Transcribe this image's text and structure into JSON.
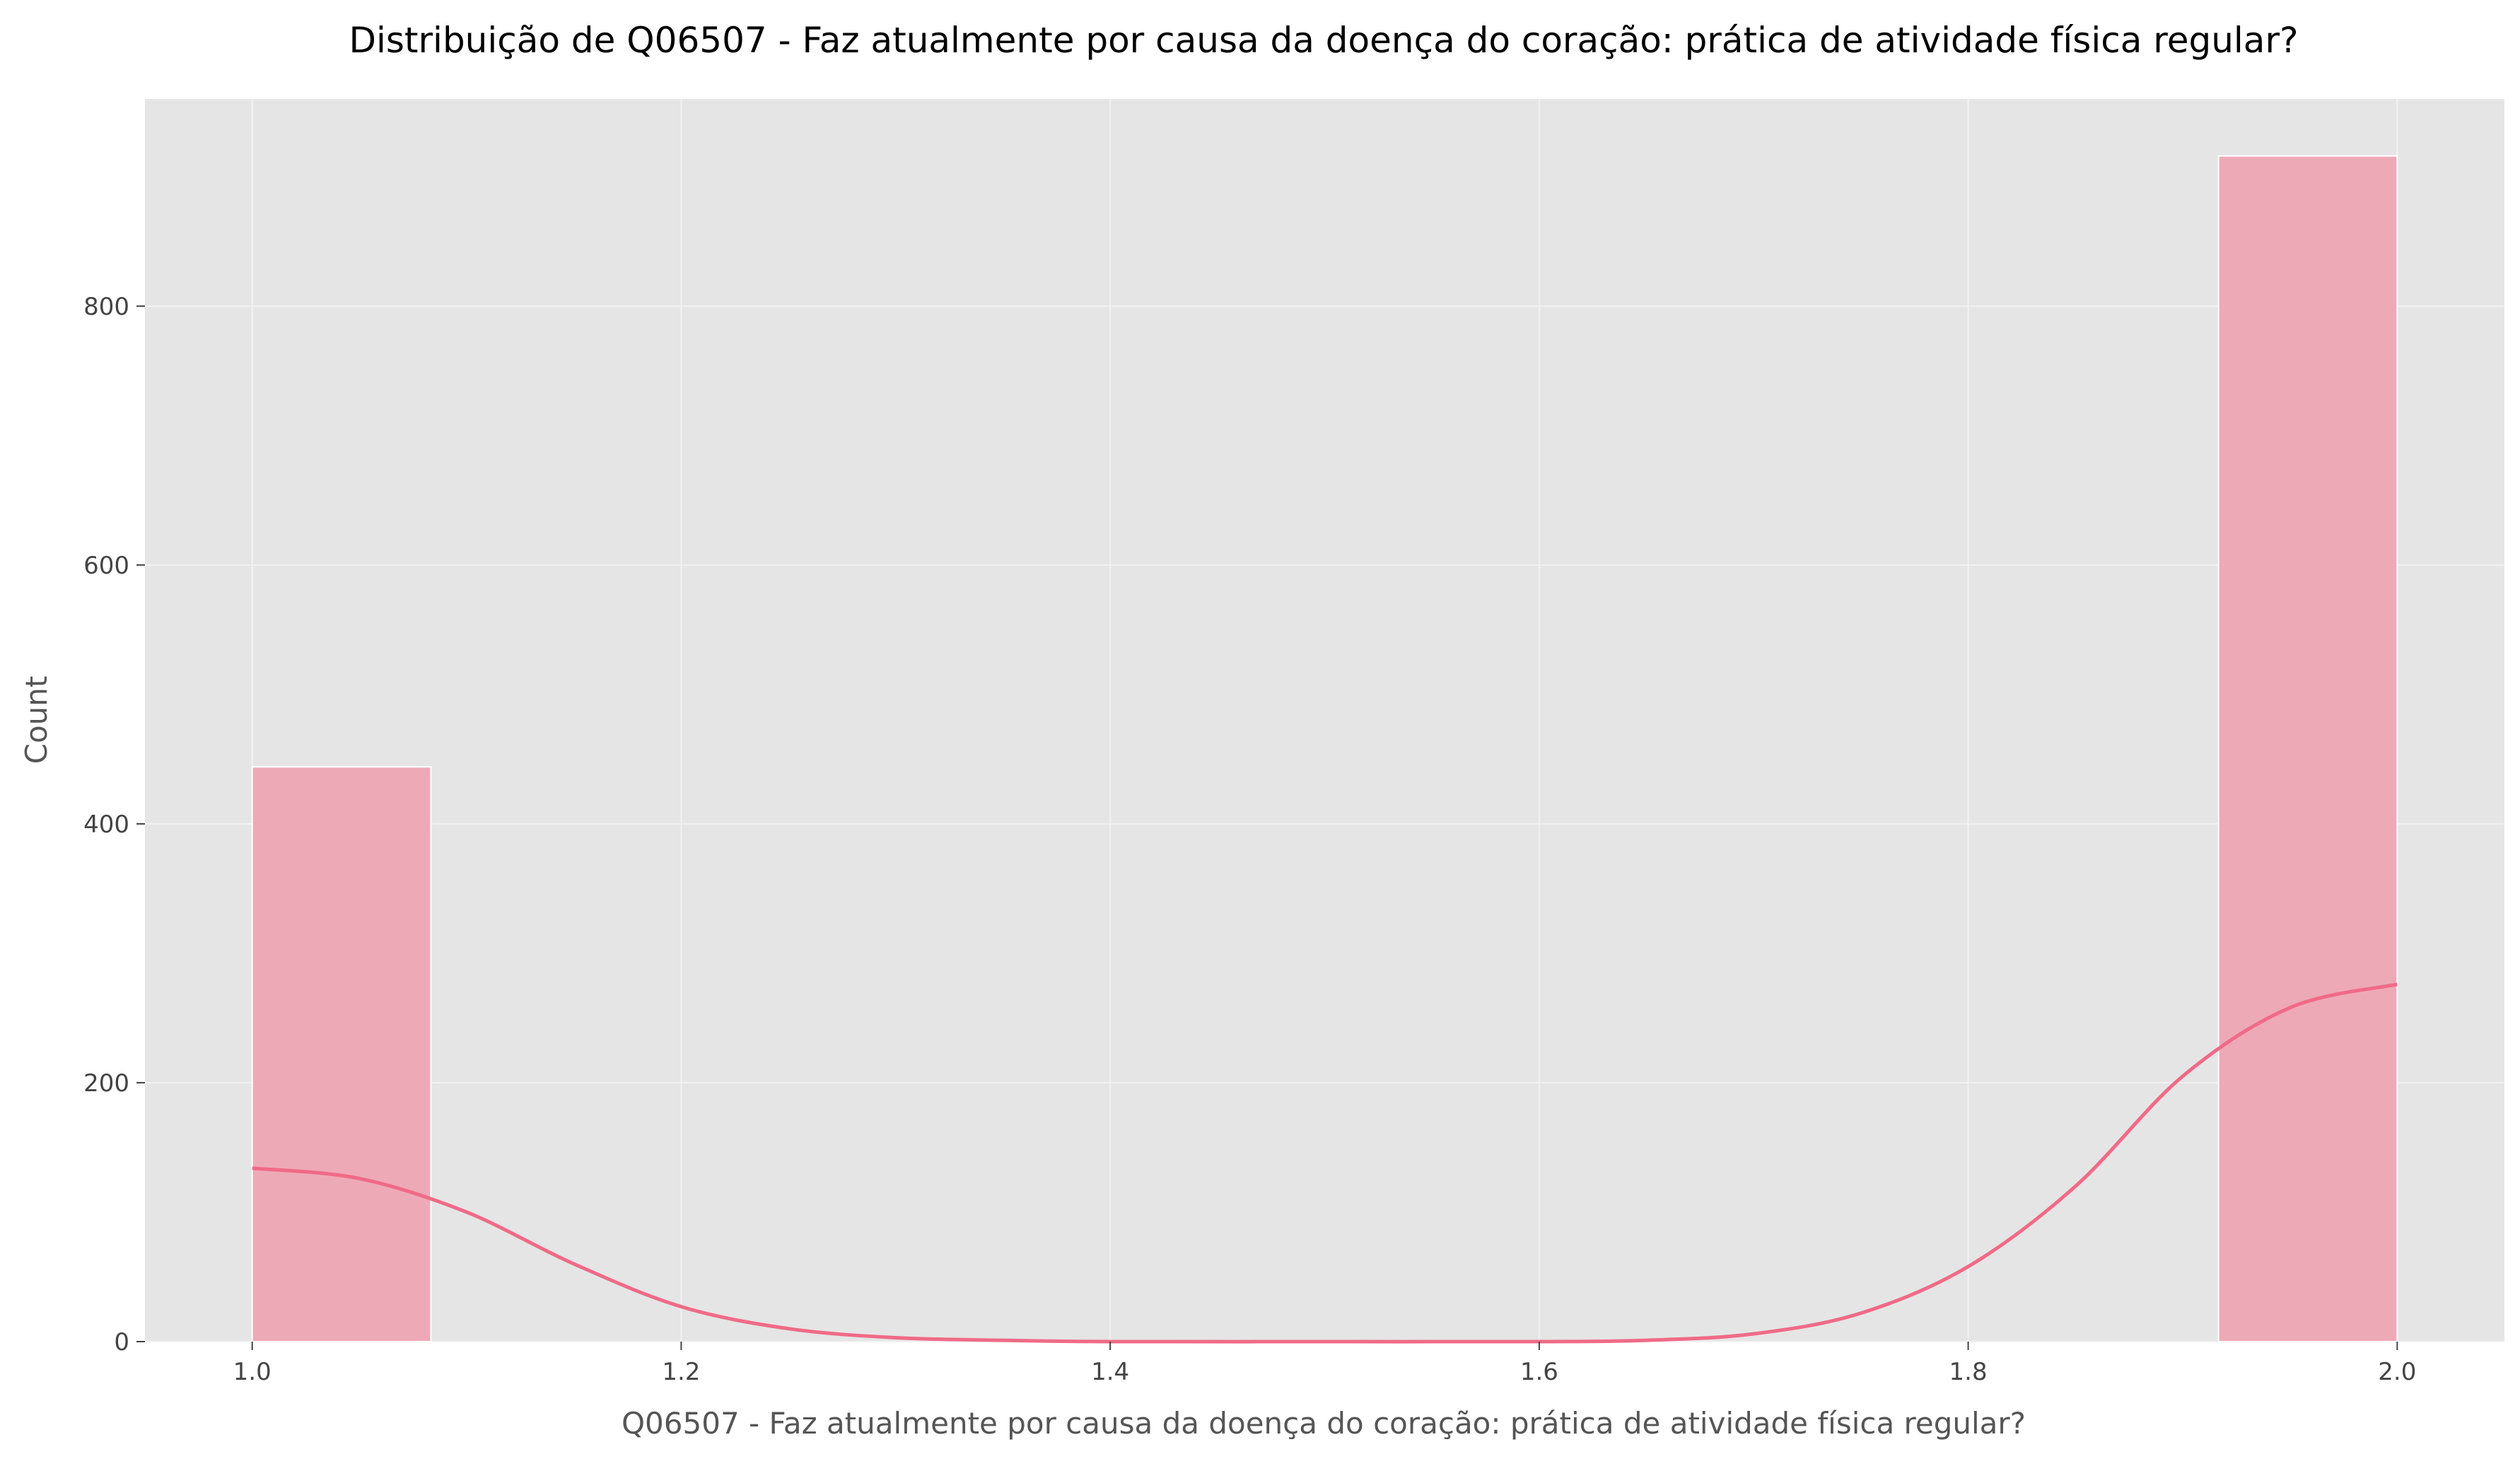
{
  "chart_data": {
    "type": "bar",
    "subtype": "histogram-with-kde",
    "title": "Distribuição de Q06507 - Faz atualmente por causa da doença do coração: prática de atividade física regular?",
    "xlabel": "Q06507 - Faz atualmente por causa da doença do coração: prática de atividade física regular?",
    "ylabel": "Count",
    "xlim": [
      0.95,
      2.05
    ],
    "ylim": [
      0,
      960
    ],
    "xticks": [
      1.0,
      1.2,
      1.4,
      1.6,
      1.8,
      2.0
    ],
    "xtick_labels": [
      "1.0",
      "1.2",
      "1.4",
      "1.6",
      "1.8",
      "2.0"
    ],
    "yticks": [
      0,
      200,
      400,
      600,
      800
    ],
    "ytick_labels": [
      "0",
      "200",
      "400",
      "600",
      "800"
    ],
    "grid": true,
    "bins": [
      {
        "x0": 1.0,
        "x1": 1.0833,
        "count": 444
      },
      {
        "x0": 1.9167,
        "x1": 2.0,
        "count": 916
      }
    ],
    "kde": {
      "x": [
        1.0,
        1.05,
        1.1,
        1.15,
        1.2,
        1.25,
        1.3,
        1.35,
        1.4,
        1.5,
        1.6,
        1.65,
        1.7,
        1.75,
        1.8,
        1.85,
        1.9,
        1.95,
        2.0
      ],
      "y": [
        134,
        126,
        100,
        60,
        27,
        10,
        3,
        1,
        0,
        0,
        0,
        1,
        6,
        22,
        58,
        120,
        205,
        258,
        276
      ]
    },
    "colors": {
      "bar": "#eea9b7",
      "kde_line": "#f06a87",
      "plot_background": "#e5e5e5",
      "grid": "#f2f2f2"
    }
  }
}
